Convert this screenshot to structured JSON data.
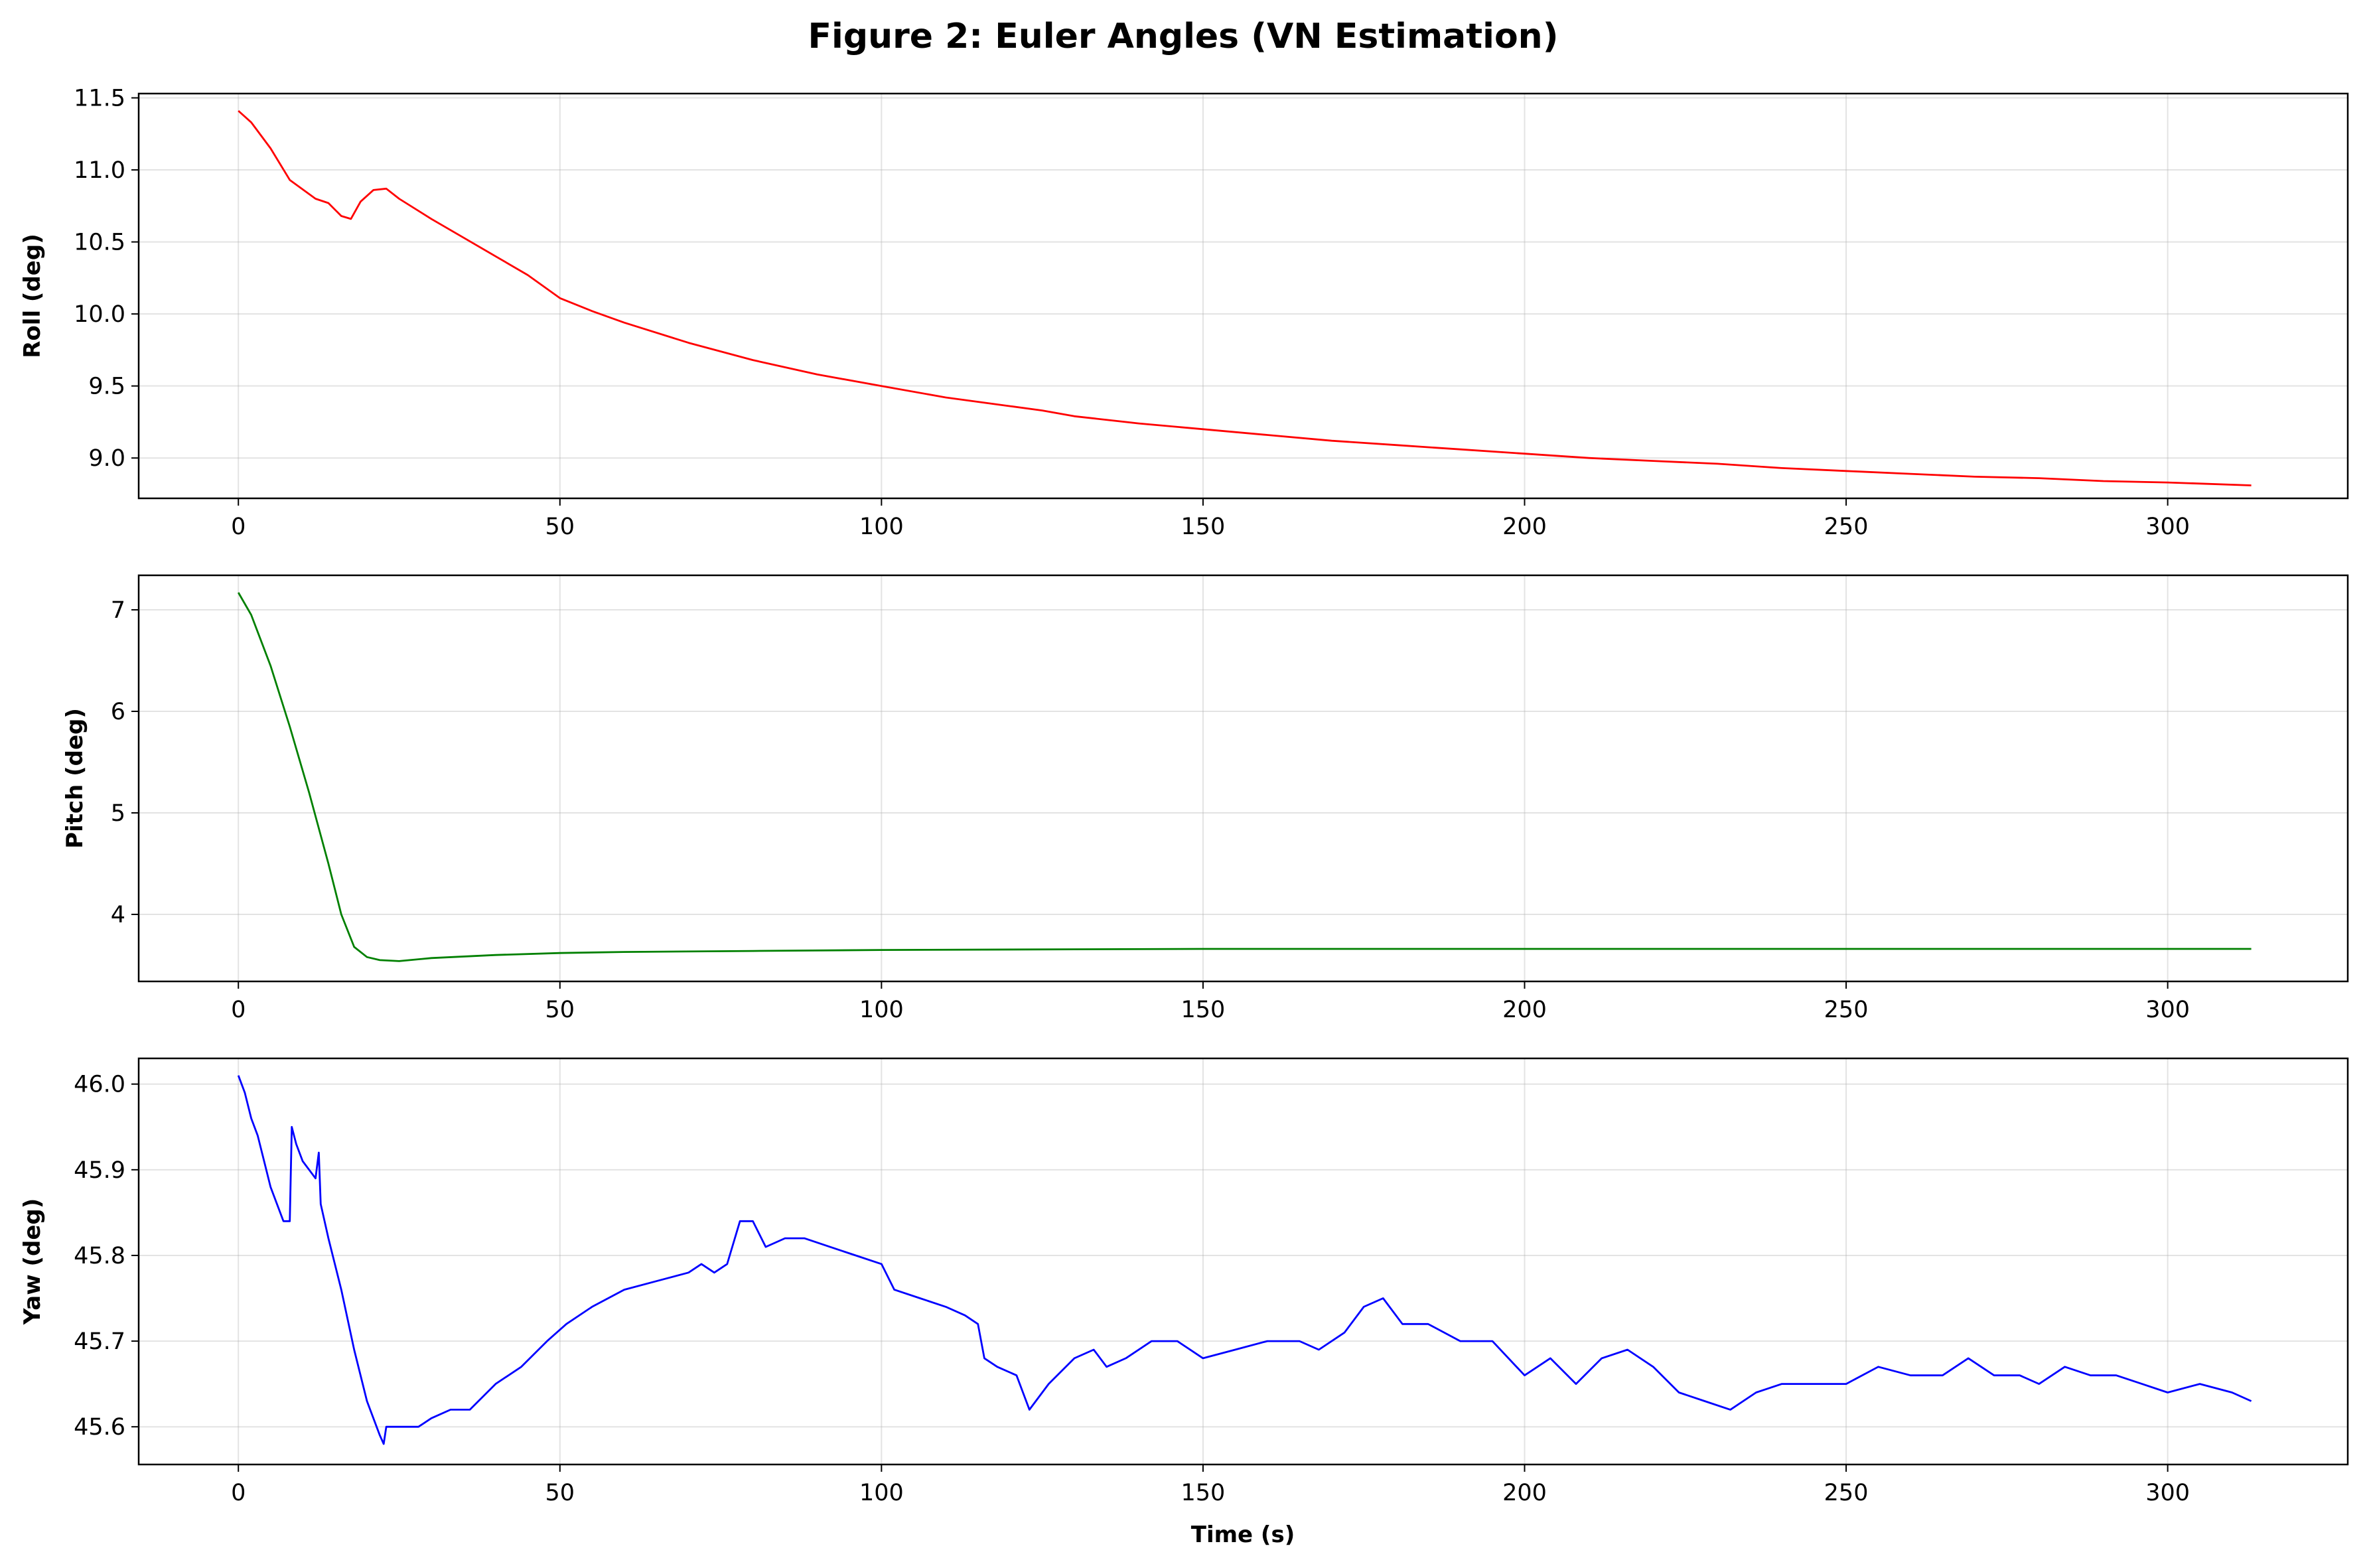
{
  "chart_data": {
    "title": "Figure 2: Euler Angles (VN Estimation)",
    "type": "line",
    "xlabel": "Time (s)",
    "xlim": [
      -15.5,
      328
    ],
    "xticks": [
      0,
      50,
      100,
      150,
      200,
      250,
      300
    ],
    "grid": true,
    "panels": [
      {
        "ylabel": "Roll (deg)",
        "color": "#ff0000",
        "ylim": [
          8.72,
          11.53
        ],
        "yticks": [
          "9.0",
          "9.5",
          "10.0",
          "10.5",
          "11.0",
          "11.5"
        ],
        "x": [
          0,
          2,
          5,
          8,
          12,
          14,
          16,
          17.5,
          19,
          21,
          23,
          25,
          30,
          35,
          40,
          45,
          50,
          55,
          60,
          70,
          80,
          90,
          100,
          110,
          120,
          125,
          130,
          140,
          150,
          160,
          170,
          180,
          190,
          200,
          210,
          220,
          230,
          240,
          250,
          260,
          270,
          280,
          290,
          300,
          313
        ],
        "y": [
          11.41,
          11.33,
          11.15,
          10.93,
          10.8,
          10.77,
          10.68,
          10.66,
          10.78,
          10.86,
          10.87,
          10.8,
          10.66,
          10.53,
          10.4,
          10.27,
          10.11,
          10.02,
          9.94,
          9.8,
          9.68,
          9.58,
          9.5,
          9.42,
          9.36,
          9.33,
          9.29,
          9.24,
          9.2,
          9.16,
          9.12,
          9.09,
          9.06,
          9.03,
          9.0,
          8.98,
          8.96,
          8.93,
          8.91,
          8.89,
          8.87,
          8.86,
          8.84,
          8.83,
          8.81
        ]
      },
      {
        "ylabel": "Pitch (deg)",
        "color": "#008000",
        "ylim": [
          3.34,
          7.34
        ],
        "yticks": [
          "4",
          "5",
          "6",
          "7"
        ],
        "x": [
          0,
          2,
          5,
          8,
          11,
          14,
          16,
          18,
          20,
          22,
          25,
          30,
          40,
          50,
          60,
          80,
          100,
          150,
          200,
          250,
          313
        ],
        "y": [
          7.17,
          6.95,
          6.45,
          5.85,
          5.2,
          4.5,
          4.0,
          3.68,
          3.58,
          3.55,
          3.54,
          3.57,
          3.6,
          3.62,
          3.63,
          3.64,
          3.65,
          3.66,
          3.66,
          3.66,
          3.66
        ]
      },
      {
        "ylabel": "Yaw (deg)",
        "color": "#0000ff",
        "ylim": [
          45.556,
          46.03
        ],
        "yticks": [
          "45.6",
          "45.7",
          "45.8",
          "45.9",
          "46.0"
        ],
        "x": [
          0,
          1,
          2,
          3,
          4,
          5,
          6,
          7,
          8,
          8.3,
          9,
          10,
          11,
          12,
          12.5,
          12.8,
          14,
          16,
          18,
          20,
          22,
          22.6,
          23,
          25,
          28,
          30,
          33,
          36,
          40,
          44,
          48,
          51,
          55,
          60,
          65,
          70,
          72,
          74,
          76,
          78,
          80,
          82,
          85,
          88,
          92,
          96,
          100,
          102,
          106,
          110,
          113,
          115,
          116,
          118,
          121,
          123,
          126,
          130,
          133,
          135,
          138,
          142,
          146,
          150,
          155,
          160,
          165,
          168,
          172,
          175,
          178,
          181,
          185,
          190,
          195,
          200,
          204,
          208,
          212,
          216,
          220,
          224,
          228,
          232,
          236,
          240,
          245,
          250,
          255,
          260,
          265,
          269,
          273,
          277,
          280,
          284,
          288,
          292,
          296,
          300,
          305,
          310,
          313
        ],
        "y": [
          46.01,
          45.99,
          45.96,
          45.94,
          45.91,
          45.88,
          45.86,
          45.84,
          45.84,
          45.95,
          45.93,
          45.91,
          45.9,
          45.89,
          45.92,
          45.86,
          45.82,
          45.76,
          45.69,
          45.63,
          45.59,
          45.58,
          45.6,
          45.6,
          45.6,
          45.61,
          45.62,
          45.62,
          45.65,
          45.67,
          45.7,
          45.72,
          45.74,
          45.76,
          45.77,
          45.78,
          45.79,
          45.78,
          45.79,
          45.84,
          45.84,
          45.81,
          45.82,
          45.82,
          45.81,
          45.8,
          45.79,
          45.76,
          45.75,
          45.74,
          45.73,
          45.72,
          45.68,
          45.67,
          45.66,
          45.62,
          45.65,
          45.68,
          45.69,
          45.67,
          45.68,
          45.7,
          45.7,
          45.68,
          45.69,
          45.7,
          45.7,
          45.69,
          45.71,
          45.74,
          45.75,
          45.72,
          45.72,
          45.7,
          45.7,
          45.66,
          45.68,
          45.65,
          45.68,
          45.69,
          45.67,
          45.64,
          45.63,
          45.62,
          45.64,
          45.65,
          45.65,
          45.65,
          45.67,
          45.66,
          45.66,
          45.68,
          45.66,
          45.66,
          45.65,
          45.67,
          45.66,
          45.66,
          45.65,
          45.64,
          45.65,
          45.64,
          45.63
        ]
      }
    ]
  }
}
